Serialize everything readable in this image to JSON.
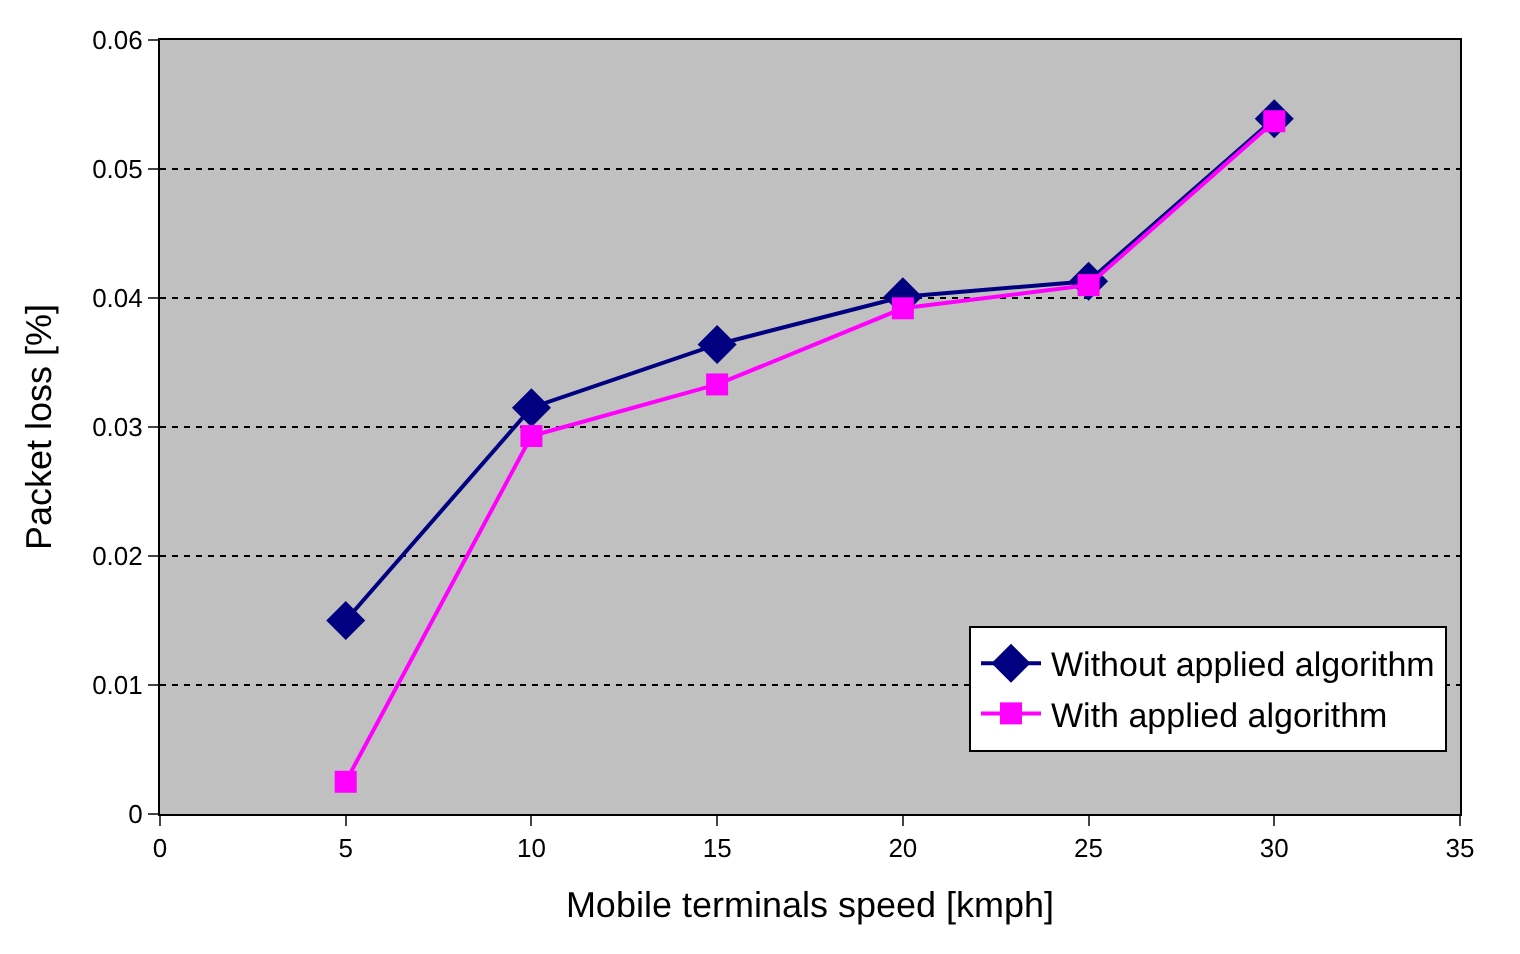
{
  "chart_data": {
    "type": "line",
    "xlabel": "Mobile terminals speed [kmph]",
    "ylabel": "Packet loss [%]",
    "x": [
      5,
      10,
      15,
      20,
      25,
      30
    ],
    "series": [
      {
        "name": "Without applied algorithm",
        "color": "#000080",
        "marker": "diamond",
        "values": [
          0.015,
          0.0315,
          0.0364,
          0.0401,
          0.0413,
          0.0539
        ]
      },
      {
        "name": "With applied algorithm",
        "color": "#ff00ff",
        "marker": "square",
        "values": [
          0.0025,
          0.0293,
          0.0333,
          0.0392,
          0.041,
          0.0537
        ]
      }
    ],
    "xlim": [
      0,
      35
    ],
    "xticks": [
      0,
      5,
      10,
      15,
      20,
      25,
      30,
      35
    ],
    "ylim": [
      0,
      0.06
    ],
    "yticks": [
      0,
      0.01,
      0.02,
      0.03,
      0.04,
      0.05,
      0.06
    ],
    "grid": "y",
    "legend": "bottom right",
    "line_style": "solid"
  }
}
